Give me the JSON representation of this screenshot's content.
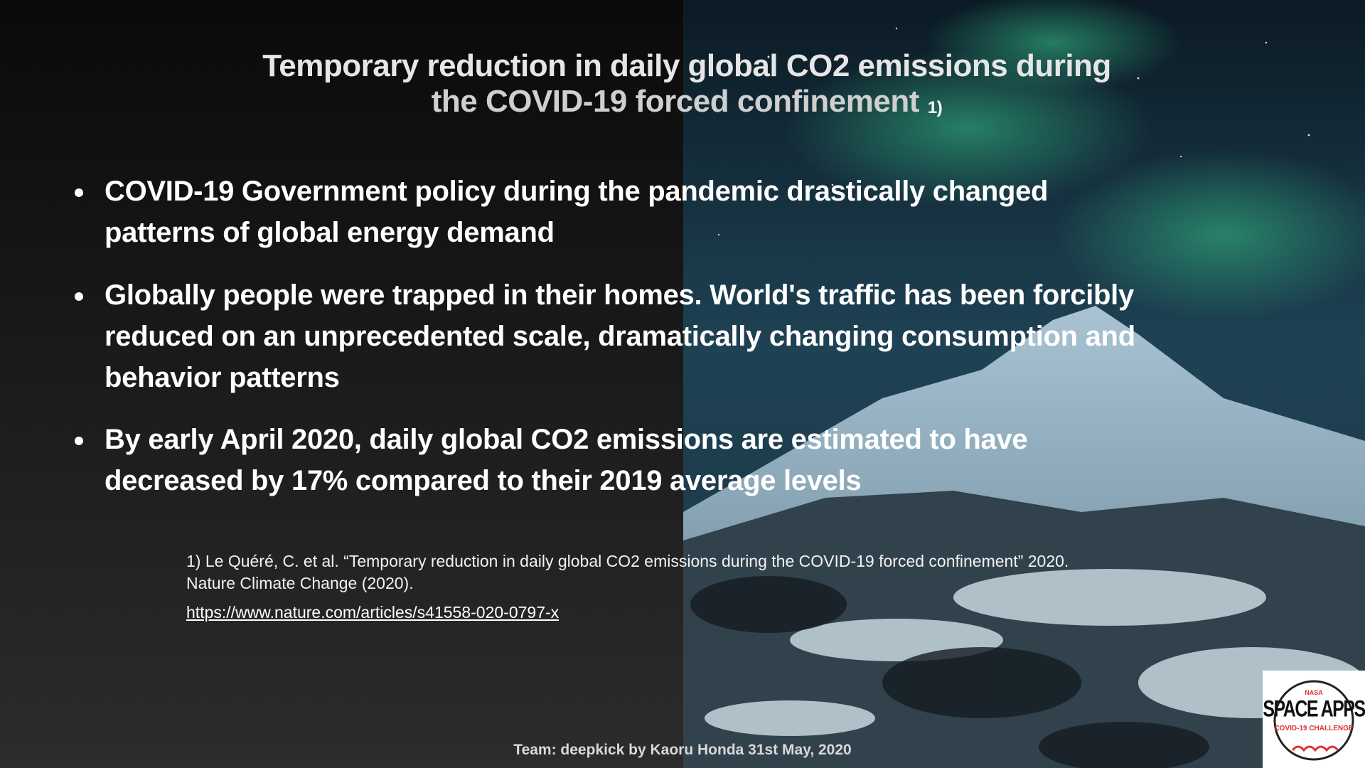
{
  "title": {
    "lines": [
      "Temporary reduction in daily global CO2 emissions during",
      "the COVID-19 forced confinement"
    ],
    "footnote_marker": "1)"
  },
  "bullets": [
    [
      "COVID-19 Government policy during the pandemic drastically changed",
      "patterns of global energy demand"
    ],
    [
      "Globally people were trapped in their homes. World's traffic has been forcibly",
      "reduced on an unprecedented scale, dramatically changing consumption and",
      "behavior patterns"
    ],
    [
      "By early April 2020, daily global CO2 emissions are estimated to have",
      "decreased by 17% compared to their 2019 average levels"
    ]
  ],
  "reference": {
    "lines": [
      "1)  Le Quéré, C. et al. “Temporary reduction in daily global CO2 emissions during the COVID-19 forced confinement” 2020.",
      "Nature Climate Change (2020)."
    ],
    "link": "https://www.nature.com/articles/s41558-020-0797-x"
  },
  "footer": "Team: deepkick by Kaoru Honda 31st May, 2020",
  "logo": {
    "org": "NASA",
    "name": "SPACE APPS",
    "challenge": "COVID-19 CHALLENGE"
  }
}
